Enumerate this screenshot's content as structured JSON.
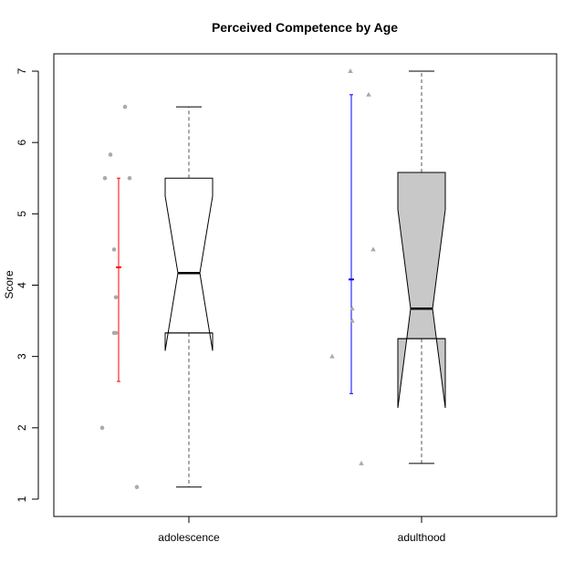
{
  "chart_data": {
    "type": "boxplot",
    "title": "Perceived Competence by Age",
    "xlabel": "",
    "ylabel": "Score",
    "ylim": [
      0.75,
      7.25
    ],
    "yticks": [
      "1",
      "2",
      "3",
      "4",
      "5",
      "6",
      "7"
    ],
    "categories": [
      "adolescence",
      "adulthood"
    ],
    "boxes": [
      {
        "name": "adolescence",
        "fill": "#ffffff",
        "min": 1.17,
        "q1": 3.33,
        "median": 4.17,
        "q3": 5.5,
        "max": 6.5,
        "notch_low": 3.08,
        "notch_high": 5.25,
        "mean": 4.25,
        "sd_low": 2.65,
        "sd_high": 5.5,
        "errorbar_color": "#ff0000",
        "points": [
          6.5,
          5.83,
          5.5,
          5.5,
          4.5,
          3.83,
          3.33,
          3.33,
          2.0,
          1.17
        ],
        "point_shape": "circle"
      },
      {
        "name": "adulthood",
        "fill": "#c8c8c8",
        "min": 1.5,
        "q1": 3.25,
        "median": 3.67,
        "q3": 5.58,
        "max": 7.0,
        "notch_low": 2.28,
        "notch_high": 5.06,
        "mean": 4.08,
        "sd_low": 2.48,
        "sd_high": 6.67,
        "errorbar_color": "#0000ff",
        "points": [
          7.0,
          6.67,
          4.5,
          3.67,
          3.5,
          3.0,
          1.5
        ],
        "point_shape": "triangle"
      }
    ],
    "point_color": "#aaaaaa",
    "grid": false,
    "legend": "none"
  }
}
